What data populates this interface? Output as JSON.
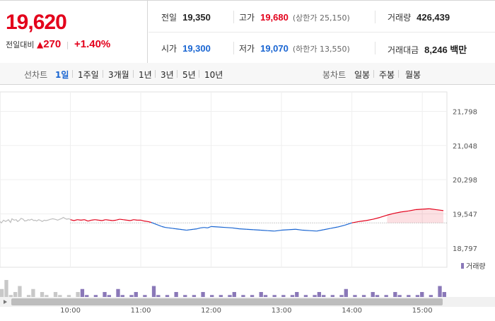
{
  "summary": {
    "price": "19,620",
    "change_label": "전일대비",
    "change_abs": "270",
    "change_pct": "+1.40%",
    "prev_close_label": "전일",
    "prev_close": "19,350",
    "high_label": "고가",
    "high": "19,680",
    "upper_limit": "(상한가 25,150)",
    "volume_label": "거래량",
    "volume": "426,439",
    "open_label": "시가",
    "open": "19,300",
    "low_label": "저가",
    "low": "19,070",
    "lower_limit": "(하한가 13,550)",
    "value_label": "거래대금",
    "value": "8,246 백만"
  },
  "toolbar": {
    "line_label": "선차트",
    "line_periods": [
      "1일",
      "1주일",
      "3개월",
      "1년",
      "3년",
      "5년",
      "10년"
    ],
    "active_period": "1일",
    "candle_label": "봉차트",
    "candle_periods": [
      "일봉",
      "주봉",
      "월봉"
    ]
  },
  "colors": {
    "up": "#e3001b",
    "down": "#1965d2",
    "prev": "#bdbdbd",
    "volume": "#8a78b8"
  },
  "chart_data": {
    "type": "line",
    "title": "",
    "ylabel": "",
    "ylim": [
      18500,
      22100
    ],
    "y_ticks": [
      "21,798",
      "21,048",
      "20,298",
      "19,547",
      "18,797"
    ],
    "y_tick_values": [
      21798,
      21048,
      20298,
      19547,
      18797
    ],
    "x_ticks": [
      "10:00",
      "11:00",
      "12:00",
      "13:00",
      "14:00",
      "15:00"
    ],
    "x_tick_values": [
      10,
      11,
      12,
      13,
      14,
      15
    ],
    "reference_line": 19350,
    "volume_legend": "거래량",
    "series": [
      {
        "x": [
          9.0,
          9.02,
          9.05,
          9.08,
          9.1,
          9.12,
          9.15,
          9.17,
          9.2,
          9.23,
          9.25,
          9.27,
          9.3,
          9.33,
          9.35,
          9.38,
          9.4,
          9.42,
          9.45,
          9.48,
          9.5,
          9.52,
          9.55,
          9.58,
          9.6,
          9.63,
          9.65,
          9.68,
          9.7,
          9.72,
          9.75,
          9.78,
          9.8,
          9.82,
          9.85,
          9.88,
          9.9,
          9.92,
          9.95,
          9.97,
          10.0
        ],
        "values": [
          19380,
          19350,
          19410,
          19380,
          19400,
          19420,
          19360,
          19440,
          19410,
          19420,
          19380,
          19400,
          19450,
          19430,
          19390,
          19400,
          19420,
          19410,
          19430,
          19400,
          19410,
          19390,
          19420,
          19400,
          19380,
          19410,
          19400,
          19410,
          19420,
          19430,
          19440,
          19430,
          19420,
          19410,
          19430,
          19450,
          19470,
          19450,
          19430,
          19440,
          19430
        ]
      },
      {
        "x": [
          10.0,
          10.05,
          10.1,
          10.15,
          10.2,
          10.25,
          10.3,
          10.35,
          10.4,
          10.45,
          10.5,
          10.55,
          10.6,
          10.65,
          10.7,
          10.75,
          10.8,
          10.85,
          10.9,
          10.95,
          11.0,
          11.05,
          11.1,
          11.15,
          11.2,
          11.25,
          11.3,
          11.35,
          11.4,
          11.45,
          11.5,
          11.55,
          11.6,
          11.65,
          11.7,
          11.75,
          11.8,
          11.85,
          11.9,
          11.95,
          12.0
        ],
        "values": [
          19420,
          19400,
          19420,
          19410,
          19420,
          19390,
          19410,
          19420,
          19410,
          19400,
          19420,
          19410,
          19400,
          19410,
          19430,
          19420,
          19410,
          19400,
          19420,
          19410,
          19410,
          19390,
          19380,
          19360,
          19330,
          19300,
          19270,
          19250,
          19240,
          19230,
          19220,
          19210,
          19200,
          19190,
          19200,
          19210,
          19220,
          19240,
          19250,
          19240,
          19270
        ]
      },
      {
        "x": [
          12.0,
          12.1,
          12.2,
          12.3,
          12.4,
          12.5,
          12.6,
          12.7,
          12.8,
          12.9,
          13.0,
          13.1,
          13.2,
          13.3,
          13.4,
          13.5,
          13.6,
          13.7,
          13.8,
          13.9,
          14.0,
          14.1,
          14.2,
          14.3,
          14.4,
          14.5,
          14.6,
          14.7,
          14.8,
          14.9,
          15.0,
          15.1,
          15.2,
          15.3
        ],
        "values": [
          19270,
          19260,
          19250,
          19240,
          19220,
          19210,
          19200,
          19190,
          19180,
          19170,
          19190,
          19200,
          19210,
          19190,
          19180,
          19170,
          19200,
          19230,
          19260,
          19300,
          19350,
          19380,
          19400,
          19430,
          19470,
          19520,
          19560,
          19590,
          19610,
          19640,
          19650,
          19660,
          19640,
          19620
        ]
      }
    ],
    "volume": [
      5,
      8,
      3,
      4,
      6,
      2,
      3,
      5,
      2,
      4,
      3,
      2,
      4,
      3,
      2,
      3,
      2,
      4,
      5,
      3,
      2,
      3,
      2,
      4,
      3,
      2,
      5,
      3,
      2,
      3,
      4,
      2,
      3,
      2,
      6,
      3,
      2,
      3,
      2,
      4,
      2,
      3,
      2,
      3,
      2,
      4,
      2,
      3,
      2,
      3,
      2,
      3,
      4,
      2,
      3,
      2,
      3,
      2,
      4,
      3,
      2,
      3,
      2,
      3,
      2,
      3,
      4,
      2,
      3,
      2,
      3,
      4,
      3,
      2,
      3,
      2,
      3,
      5,
      2,
      3,
      2,
      3,
      2,
      4,
      3,
      2,
      3,
      2,
      4,
      3,
      2,
      3,
      2,
      3,
      4,
      2,
      3,
      2,
      6,
      4
    ]
  }
}
